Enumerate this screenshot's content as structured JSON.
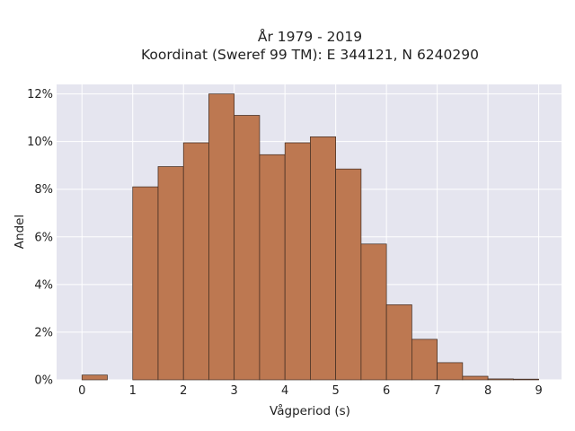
{
  "chart_data": {
    "type": "bar",
    "title": "År 1979 - 2019",
    "subtitle": "Koordinat (Sweref 99 TM): E 344121, N 6240290",
    "xlabel": "Vågperiod (s)",
    "ylabel": "Andel",
    "xlim": [
      -0.5,
      9.45
    ],
    "ylim": [
      0,
      12.4
    ],
    "x_ticks": [
      0,
      1,
      2,
      3,
      4,
      5,
      6,
      7,
      8,
      9
    ],
    "y_ticks": [
      0,
      2,
      4,
      6,
      8,
      10,
      12
    ],
    "y_tick_labels": [
      "0%",
      "2%",
      "4%",
      "6%",
      "8%",
      "10%",
      "12%"
    ],
    "bin_width": 0.5,
    "bins": [
      {
        "start": 0.0,
        "value": 0.2
      },
      {
        "start": 0.5,
        "value": 0.0
      },
      {
        "start": 1.0,
        "value": 8.1
      },
      {
        "start": 1.5,
        "value": 8.95
      },
      {
        "start": 2.0,
        "value": 9.95
      },
      {
        "start": 2.5,
        "value": 12.0
      },
      {
        "start": 3.0,
        "value": 11.1
      },
      {
        "start": 3.5,
        "value": 9.45
      },
      {
        "start": 4.0,
        "value": 9.95
      },
      {
        "start": 4.5,
        "value": 10.2
      },
      {
        "start": 5.0,
        "value": 8.85
      },
      {
        "start": 5.5,
        "value": 5.7
      },
      {
        "start": 6.0,
        "value": 3.15
      },
      {
        "start": 6.5,
        "value": 1.7
      },
      {
        "start": 7.0,
        "value": 0.72
      },
      {
        "start": 7.5,
        "value": 0.15
      },
      {
        "start": 8.0,
        "value": 0.04
      },
      {
        "start": 8.5,
        "value": 0.03
      }
    ],
    "grid": true,
    "legend": "none"
  },
  "colors": {
    "plot_background": "#e5e5ef",
    "grid": "#ffffff",
    "bar_fill": "#bd7851",
    "bar_edge": "#3d2a20"
  }
}
